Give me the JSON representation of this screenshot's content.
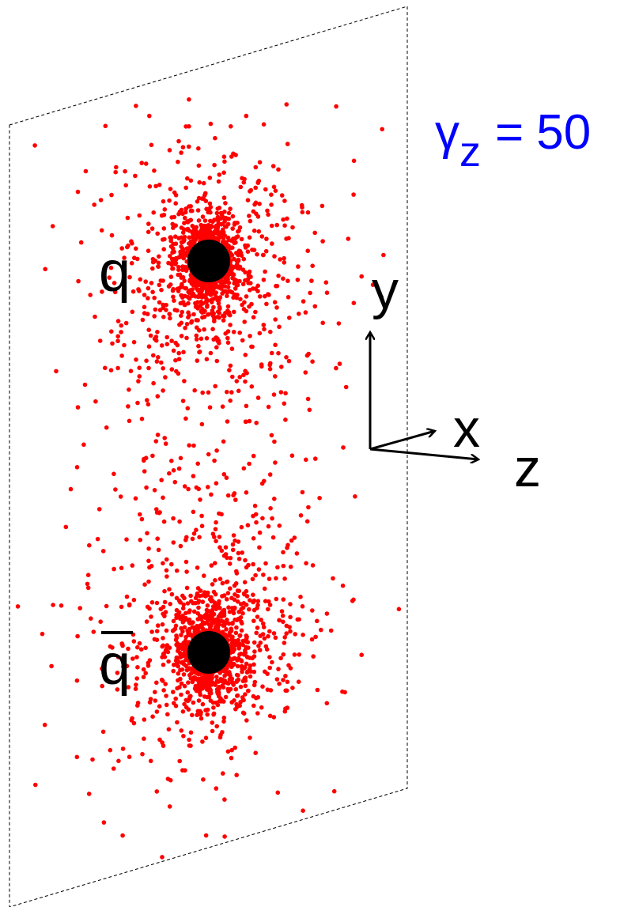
{
  "labels": {
    "quark": "q",
    "antiquark": "q",
    "y_axis": "y",
    "x_axis": "x",
    "z_axis": "z"
  },
  "boost": {
    "symbol": "γ",
    "subscript": "z",
    "relation": "=",
    "value": 50
  }
}
